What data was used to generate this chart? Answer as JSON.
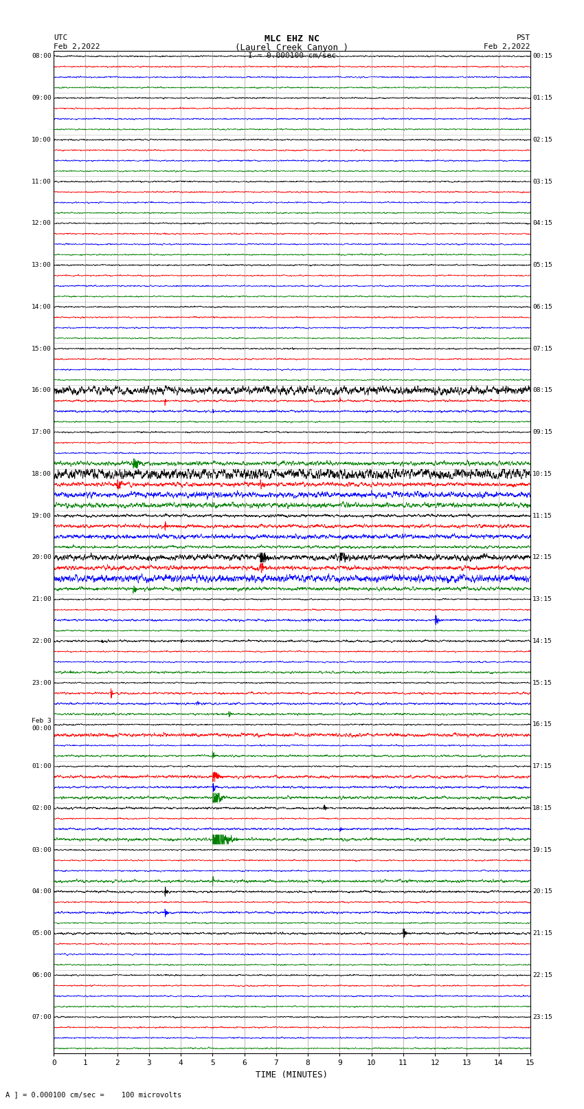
{
  "title_line1": "MLC EHZ NC",
  "title_line2": "(Laurel Creek Canyon )",
  "title_line3": "I = 0.000100 cm/sec",
  "utc_label": "UTC",
  "utc_date": "Feb 2,2022",
  "pst_label": "PST",
  "pst_date": "Feb 2,2022",
  "xlabel": "TIME (MINUTES)",
  "footnote": "A ] = 0.000100 cm/sec =    100 microvolts",
  "bg_color": "#ffffff",
  "trace_colors": [
    "black",
    "red",
    "blue",
    "green"
  ],
  "num_hours": 24,
  "traces_per_hour": 4,
  "xlim": [
    0,
    15
  ],
  "xticks": [
    0,
    1,
    2,
    3,
    4,
    5,
    6,
    7,
    8,
    9,
    10,
    11,
    12,
    13,
    14,
    15
  ],
  "left_labels_utc": [
    "08:00",
    "",
    "",
    "",
    "09:00",
    "",
    "",
    "",
    "10:00",
    "",
    "",
    "",
    "11:00",
    "",
    "",
    "",
    "12:00",
    "",
    "",
    "",
    "13:00",
    "",
    "",
    "",
    "14:00",
    "",
    "",
    "",
    "15:00",
    "",
    "",
    "",
    "16:00",
    "",
    "",
    "",
    "17:00",
    "",
    "",
    "",
    "18:00",
    "",
    "",
    "",
    "19:00",
    "",
    "",
    "",
    "20:00",
    "",
    "",
    "",
    "21:00",
    "",
    "",
    "",
    "22:00",
    "",
    "",
    "",
    "23:00",
    "",
    "",
    "",
    "Feb 3\n00:00",
    "",
    "",
    "",
    "01:00",
    "",
    "",
    "",
    "02:00",
    "",
    "",
    "",
    "03:00",
    "",
    "",
    "",
    "04:00",
    "",
    "",
    "",
    "05:00",
    "",
    "",
    "",
    "06:00",
    "",
    "",
    "",
    "07:00",
    "",
    "",
    ""
  ],
  "right_labels_pst": [
    "00:15",
    "",
    "",
    "",
    "01:15",
    "",
    "",
    "",
    "02:15",
    "",
    "",
    "",
    "03:15",
    "",
    "",
    "",
    "04:15",
    "",
    "",
    "",
    "05:15",
    "",
    "",
    "",
    "06:15",
    "",
    "",
    "",
    "07:15",
    "",
    "",
    "",
    "08:15",
    "",
    "",
    "",
    "09:15",
    "",
    "",
    "",
    "10:15",
    "",
    "",
    "",
    "11:15",
    "",
    "",
    "",
    "12:15",
    "",
    "",
    "",
    "13:15",
    "",
    "",
    "",
    "14:15",
    "",
    "",
    "",
    "15:15",
    "",
    "",
    "",
    "16:15",
    "",
    "",
    "",
    "17:15",
    "",
    "",
    "",
    "18:15",
    "",
    "",
    "",
    "19:15",
    "",
    "",
    "",
    "20:15",
    "",
    "",
    "",
    "21:15",
    "",
    "",
    "",
    "22:15",
    "",
    "",
    "",
    "23:15",
    "",
    "",
    ""
  ]
}
